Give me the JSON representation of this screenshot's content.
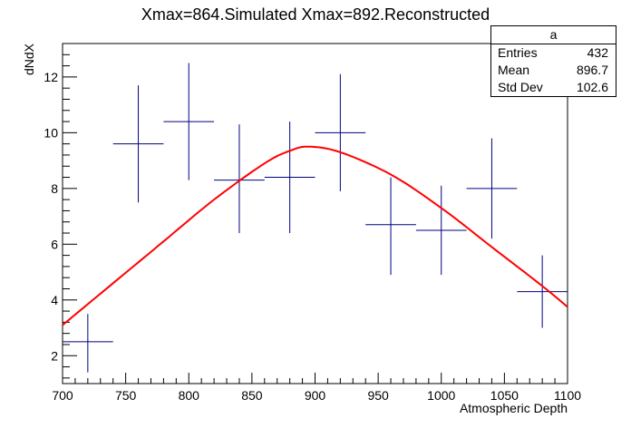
{
  "chart_data": {
    "type": "histogram",
    "title": "Xmax=864.Simulated  Xmax=892.Reconstructed",
    "xlabel": "Atmospheric Depth",
    "ylabel": "dNdX",
    "xlim": [
      700,
      1100
    ],
    "ylim": [
      1,
      13.2
    ],
    "x_ticks": [
      "700",
      "750",
      "800",
      "850",
      "900",
      "950",
      "1000",
      "1050",
      "1100"
    ],
    "y_ticks": [
      "2",
      "4",
      "6",
      "8",
      "10",
      "12"
    ],
    "points": [
      {
        "x": 720,
        "xlo": 700,
        "xhi": 740,
        "y": 2.5,
        "ylo": 1.4,
        "yhi": 3.5
      },
      {
        "x": 760,
        "xlo": 740,
        "xhi": 780,
        "y": 9.6,
        "ylo": 7.5,
        "yhi": 11.7
      },
      {
        "x": 800,
        "xlo": 780,
        "xhi": 820,
        "y": 10.4,
        "ylo": 8.3,
        "yhi": 12.5
      },
      {
        "x": 840,
        "xlo": 820,
        "xhi": 860,
        "y": 8.3,
        "ylo": 6.4,
        "yhi": 10.3
      },
      {
        "x": 880,
        "xlo": 860,
        "xhi": 900,
        "y": 8.4,
        "ylo": 6.4,
        "yhi": 10.4
      },
      {
        "x": 920,
        "xlo": 900,
        "xhi": 940,
        "y": 10.0,
        "ylo": 7.9,
        "yhi": 12.1
      },
      {
        "x": 960,
        "xlo": 940,
        "xhi": 980,
        "y": 6.7,
        "ylo": 4.9,
        "yhi": 8.4
      },
      {
        "x": 1000,
        "xlo": 980,
        "xhi": 1020,
        "y": 6.5,
        "ylo": 4.9,
        "yhi": 8.1
      },
      {
        "x": 1040,
        "xlo": 1020,
        "xhi": 1060,
        "y": 8.0,
        "ylo": 6.2,
        "yhi": 9.8
      },
      {
        "x": 1080,
        "xlo": 1060,
        "xhi": 1100,
        "y": 4.3,
        "ylo": 3.0,
        "yhi": 5.6
      }
    ],
    "fit": {
      "type": "line",
      "color": "#ff0000",
      "x": [
        700,
        740,
        780,
        820,
        860,
        880,
        895,
        920,
        960,
        1000,
        1040,
        1080,
        1100
      ],
      "y": [
        3.1,
        4.6,
        6.1,
        7.6,
        8.9,
        9.35,
        9.5,
        9.3,
        8.5,
        7.3,
        5.9,
        4.5,
        3.75
      ]
    },
    "error_bar_color": "#000080",
    "grid": false,
    "legend": "none"
  },
  "stats": {
    "name": "a",
    "rows": [
      {
        "label": "Entries",
        "value": "432"
      },
      {
        "label": "Mean",
        "value": "896.7"
      },
      {
        "label": "Std Dev",
        "value": "102.6"
      }
    ]
  }
}
